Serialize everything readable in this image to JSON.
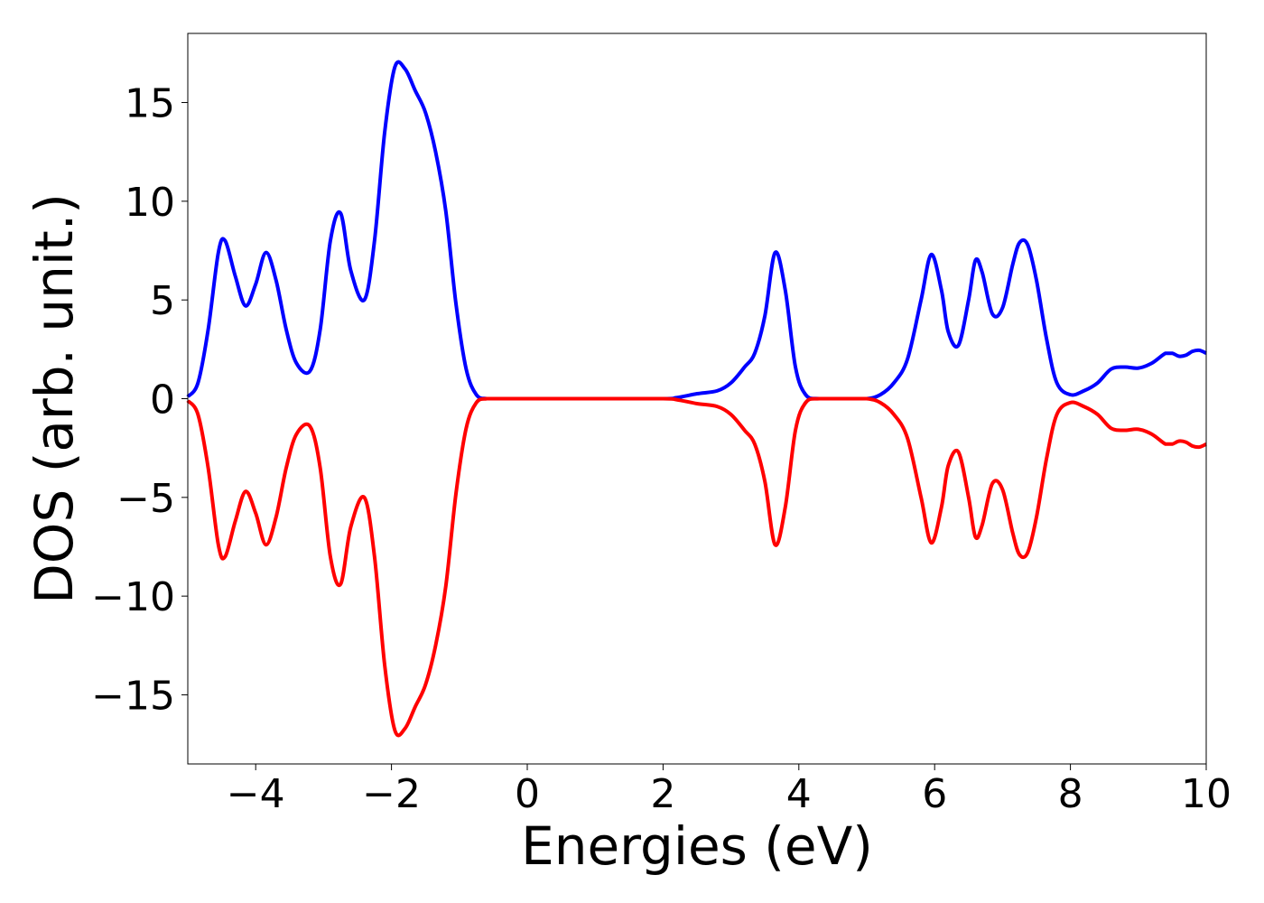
{
  "chart_data": {
    "type": "line",
    "xlabel": "Energies (eV)",
    "ylabel": "DOS (arb. unit.)",
    "xlim": [
      -5,
      10
    ],
    "ylim": [
      -18.5,
      18.5
    ],
    "xticks": [
      -4,
      -2,
      0,
      2,
      4,
      6,
      8,
      10
    ],
    "xtick_labels": [
      "−4",
      "−2",
      "0",
      "2",
      "4",
      "6",
      "8",
      "10"
    ],
    "yticks": [
      -15,
      -10,
      -5,
      0,
      5,
      10,
      15
    ],
    "ytick_labels": [
      "−15",
      "−10",
      "−5",
      "0",
      "5",
      "10",
      "15"
    ],
    "grid": false,
    "series": [
      {
        "color": "#0000ff",
        "x": [
          -5.0,
          -4.85,
          -4.7,
          -4.55,
          -4.45,
          -4.3,
          -4.15,
          -4.0,
          -3.85,
          -3.7,
          -3.55,
          -3.4,
          -3.2,
          -3.05,
          -2.9,
          -2.75,
          -2.6,
          -2.4,
          -2.25,
          -2.1,
          -1.95,
          -1.8,
          -1.65,
          -1.5,
          -1.35,
          -1.2,
          -1.05,
          -0.9,
          -0.75,
          -0.6,
          -0.5,
          0.0,
          1.0,
          2.0,
          2.2,
          2.5,
          2.8,
          3.0,
          3.2,
          3.35,
          3.5,
          3.65,
          3.8,
          3.95,
          4.1,
          4.3,
          4.7,
          5.0,
          5.2,
          5.4,
          5.6,
          5.8,
          5.95,
          6.1,
          6.2,
          6.35,
          6.5,
          6.6,
          6.7,
          6.85,
          7.0,
          7.15,
          7.25,
          7.37,
          7.5,
          7.65,
          7.8,
          8.0,
          8.2,
          8.4,
          8.6,
          8.8,
          9.0,
          9.2,
          9.4,
          9.5,
          9.6,
          9.7,
          9.8,
          9.9,
          10.0
        ],
        "y": [
          0.1,
          0.8,
          3.5,
          7.4,
          8.0,
          6.2,
          4.7,
          5.8,
          7.4,
          6.0,
          3.5,
          1.8,
          1.4,
          3.5,
          8.0,
          9.4,
          6.5,
          5.0,
          8.0,
          13.5,
          16.8,
          16.7,
          15.6,
          14.5,
          12.5,
          9.5,
          4.8,
          1.5,
          0.2,
          0.0,
          0.0,
          0.0,
          0.0,
          0.0,
          0.05,
          0.25,
          0.4,
          0.8,
          1.6,
          2.3,
          4.2,
          7.4,
          5.5,
          1.6,
          0.2,
          0.0,
          0.0,
          0.0,
          0.2,
          0.8,
          2.0,
          5.0,
          7.3,
          5.5,
          3.4,
          2.7,
          5.0,
          7.0,
          6.4,
          4.3,
          4.6,
          6.8,
          7.9,
          7.8,
          6.0,
          3.0,
          0.8,
          0.2,
          0.4,
          0.8,
          1.5,
          1.6,
          1.55,
          1.8,
          2.3,
          2.3,
          2.15,
          2.2,
          2.4,
          2.45,
          2.3
        ]
      },
      {
        "color": "#ff0000",
        "x": [
          -5.0,
          -4.85,
          -4.7,
          -4.55,
          -4.45,
          -4.3,
          -4.15,
          -4.0,
          -3.85,
          -3.7,
          -3.55,
          -3.4,
          -3.2,
          -3.05,
          -2.9,
          -2.75,
          -2.6,
          -2.4,
          -2.25,
          -2.1,
          -1.95,
          -1.8,
          -1.65,
          -1.5,
          -1.35,
          -1.2,
          -1.05,
          -0.9,
          -0.75,
          -0.6,
          -0.5,
          0.0,
          1.0,
          2.0,
          2.2,
          2.5,
          2.8,
          3.0,
          3.2,
          3.35,
          3.5,
          3.65,
          3.8,
          3.95,
          4.1,
          4.3,
          4.7,
          5.0,
          5.2,
          5.4,
          5.6,
          5.8,
          5.95,
          6.1,
          6.2,
          6.35,
          6.5,
          6.6,
          6.7,
          6.85,
          7.0,
          7.15,
          7.25,
          7.37,
          7.5,
          7.65,
          7.8,
          8.0,
          8.2,
          8.4,
          8.6,
          8.8,
          9.0,
          9.2,
          9.4,
          9.5,
          9.6,
          9.7,
          9.8,
          9.9,
          10.0
        ],
        "y": [
          -0.1,
          -0.8,
          -3.5,
          -7.4,
          -8.0,
          -6.2,
          -4.7,
          -5.8,
          -7.4,
          -6.0,
          -3.5,
          -1.8,
          -1.4,
          -3.5,
          -8.0,
          -9.4,
          -6.5,
          -5.0,
          -8.0,
          -13.5,
          -16.8,
          -16.7,
          -15.6,
          -14.5,
          -12.5,
          -9.5,
          -4.8,
          -1.5,
          -0.2,
          0.0,
          0.0,
          0.0,
          0.0,
          0.0,
          -0.05,
          -0.25,
          -0.4,
          -0.8,
          -1.6,
          -2.3,
          -4.2,
          -7.4,
          -5.5,
          -1.6,
          -0.2,
          0.0,
          0.0,
          0.0,
          -0.2,
          -0.8,
          -2.0,
          -5.0,
          -7.3,
          -5.5,
          -3.4,
          -2.7,
          -5.0,
          -7.0,
          -6.4,
          -4.3,
          -4.6,
          -6.8,
          -7.9,
          -7.8,
          -6.0,
          -3.0,
          -0.8,
          -0.2,
          -0.4,
          -0.8,
          -1.5,
          -1.6,
          -1.55,
          -1.8,
          -2.3,
          -2.3,
          -2.15,
          -2.2,
          -2.4,
          -2.45,
          -2.3
        ]
      }
    ]
  }
}
